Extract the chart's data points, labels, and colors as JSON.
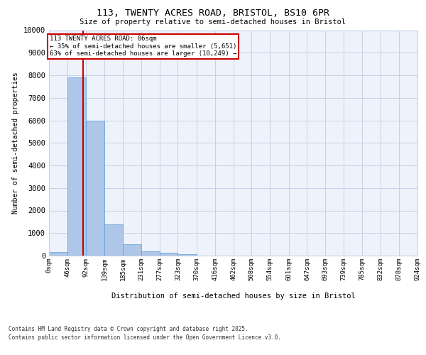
{
  "title_line1": "113, TWENTY ACRES ROAD, BRISTOL, BS10 6PR",
  "title_line2": "Size of property relative to semi-detached houses in Bristol",
  "xlabel": "Distribution of semi-detached houses by size in Bristol",
  "ylabel": "Number of semi-detached properties",
  "bar_edges": [
    0,
    46,
    92,
    139,
    185,
    231,
    277,
    323,
    370,
    416,
    462,
    508,
    554,
    601,
    647,
    693,
    739,
    785,
    832,
    878,
    924
  ],
  "bar_heights": [
    150,
    7900,
    6000,
    1400,
    500,
    200,
    120,
    60,
    10,
    0,
    0,
    0,
    0,
    0,
    0,
    0,
    0,
    0,
    0,
    0
  ],
  "bar_color": "#aec6e8",
  "bar_edgecolor": "#5a9fd4",
  "red_line_x": 86,
  "annotation_text": "113 TWENTY ACRES ROAD: 86sqm\n← 35% of semi-detached houses are smaller (5,651)\n63% of semi-detached houses are larger (10,249) →",
  "annotation_box_color": "#ffffff",
  "annotation_border_color": "#cc0000",
  "ylim": [
    0,
    10000
  ],
  "yticks": [
    0,
    1000,
    2000,
    3000,
    4000,
    5000,
    6000,
    7000,
    8000,
    9000,
    10000
  ],
  "background_color": "#eef2fb",
  "grid_color": "#c8d0e8",
  "footer_line1": "Contains HM Land Registry data © Crown copyright and database right 2025.",
  "footer_line2": "Contains public sector information licensed under the Open Government Licence v3.0.",
  "tick_labels": [
    "0sqm",
    "46sqm",
    "92sqm",
    "139sqm",
    "185sqm",
    "231sqm",
    "277sqm",
    "323sqm",
    "370sqm",
    "416sqm",
    "462sqm",
    "508sqm",
    "554sqm",
    "601sqm",
    "647sqm",
    "693sqm",
    "739sqm",
    "785sqm",
    "832sqm",
    "878sqm",
    "924sqm"
  ]
}
